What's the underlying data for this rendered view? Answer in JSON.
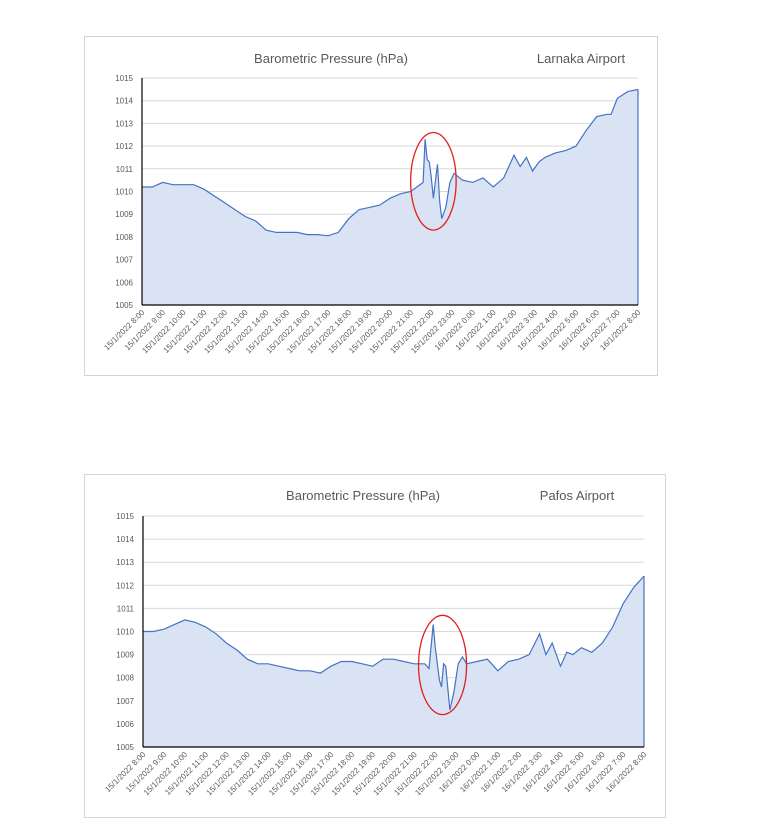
{
  "chart_data": [
    {
      "type": "area",
      "title": "Barometric Pressure (hPa)",
      "subtitle": "Larnaka Airport",
      "xlabel": "",
      "ylabel": "",
      "ylim": [
        1005,
        1015
      ],
      "yticks": [
        "1005",
        "1006",
        "1007",
        "1008",
        "1009",
        "1010",
        "1011",
        "1012",
        "1013",
        "1014",
        "1015"
      ],
      "xticks": [
        "15/1/2022 8:00",
        "15/1/2022 9:00",
        "15/1/2022 10:00",
        "15/1/2022 11:00",
        "15/1/2022 12:00",
        "15/1/2022 13:00",
        "15/1/2022 14:00",
        "15/1/2022 15:00",
        "15/1/2022 16:00",
        "15/1/2022 17:00",
        "15/1/2022 18:00",
        "15/1/2022 19:00",
        "15/1/2022 20:00",
        "15/1/2022 21:00",
        "15/1/2022 22:00",
        "15/1/2022 23:00",
        "16/1/2022 0:00",
        "16/1/2022 1:00",
        "16/1/2022 2:00",
        "16/1/2022 3:00",
        "16/1/2022 4:00",
        "16/1/2022 5:00",
        "16/1/2022 6:00",
        "16/1/2022 7:00",
        "16/1/2022 8:00"
      ],
      "x_hours_from_start": [
        0,
        0.5,
        1,
        1.5,
        2,
        2.5,
        3,
        3.5,
        4,
        4.5,
        5,
        5.5,
        6,
        6.5,
        7,
        7.5,
        8,
        8.5,
        9,
        9.5,
        10,
        10.5,
        11,
        11.5,
        12,
        12.5,
        13,
        13.3,
        13.6,
        13.7,
        13.8,
        13.9,
        14.0,
        14.1,
        14.2,
        14.3,
        14.4,
        14.5,
        14.7,
        14.9,
        15.1,
        15.5,
        16,
        16.5,
        17,
        17.5,
        18,
        18.3,
        18.6,
        18.9,
        19.2,
        19.5,
        20,
        20.5,
        21,
        21.5,
        22,
        22.5,
        22.7,
        23,
        23.5,
        24
      ],
      "values": [
        1010.2,
        1010.2,
        1010.4,
        1010.3,
        1010.3,
        1010.3,
        1010.1,
        1009.8,
        1009.5,
        1009.2,
        1008.9,
        1008.7,
        1008.3,
        1008.2,
        1008.2,
        1008.2,
        1008.1,
        1008.1,
        1008.05,
        1008.2,
        1008.8,
        1009.2,
        1009.3,
        1009.4,
        1009.7,
        1009.9,
        1010.0,
        1010.2,
        1010.4,
        1012.3,
        1011.4,
        1011.3,
        1010.6,
        1009.7,
        1010.5,
        1011.2,
        1009.6,
        1008.8,
        1009.3,
        1010.4,
        1010.8,
        1010.5,
        1010.4,
        1010.6,
        1010.2,
        1010.6,
        1011.6,
        1011.1,
        1011.5,
        1010.9,
        1011.3,
        1011.5,
        1011.7,
        1011.8,
        1012.0,
        1012.7,
        1013.3,
        1013.4,
        1013.4,
        1014.1,
        1014.4,
        1014.5
      ],
      "annotation": {
        "shape": "ellipse",
        "x_range_hours": [
          13.0,
          15.2
        ],
        "y_range": [
          1008.3,
          1012.6
        ],
        "color": "#e02020"
      },
      "line_color": "#4472c4",
      "fill_color": "#dae3f3",
      "grid": true
    },
    {
      "type": "area",
      "title": "Barometric Pressure (hPa)",
      "subtitle": "Pafos Airport",
      "xlabel": "",
      "ylabel": "",
      "ylim": [
        1005,
        1015
      ],
      "yticks": [
        "1005",
        "1006",
        "1007",
        "1008",
        "1009",
        "1010",
        "1011",
        "1012",
        "1013",
        "1014",
        "1015"
      ],
      "xticks": [
        "15/1/2022 8:00",
        "15/1/2022 9:00",
        "15/1/2022 10:00",
        "15/1/2022 11:00",
        "15/1/2022 12:00",
        "15/1/2022 13:00",
        "15/1/2022 14:00",
        "15/1/2022 15:00",
        "15/1/2022 16:00",
        "15/1/2022 17:00",
        "15/1/2022 18:00",
        "15/1/2022 19:00",
        "15/1/2022 20:00",
        "15/1/2022 21:00",
        "15/1/2022 22:00",
        "15/1/2022 23:00",
        "16/1/2022 0:00",
        "16/1/2022 1:00",
        "16/1/2022 2:00",
        "16/1/2022 3:00",
        "16/1/2022 4:00",
        "16/1/2022 5:00",
        "16/1/2022 6:00",
        "16/1/2022 7:00",
        "16/1/2022 8:00"
      ],
      "x_hours_from_start": [
        0,
        0.5,
        1,
        1.5,
        2,
        2.5,
        3,
        3.5,
        4,
        4.5,
        5,
        5.5,
        6,
        6.5,
        7,
        7.5,
        8,
        8.5,
        9,
        9.5,
        10,
        10.5,
        11,
        11.5,
        12,
        12.5,
        13,
        13.5,
        13.7,
        13.9,
        14.0,
        14.2,
        14.3,
        14.4,
        14.5,
        14.7,
        14.9,
        15.1,
        15.3,
        15.5,
        16,
        16.5,
        17,
        17.5,
        18,
        18.5,
        19,
        19.3,
        19.6,
        20,
        20.3,
        20.6,
        21,
        21.5,
        22,
        22.5,
        23,
        23.5,
        24
      ],
      "values": [
        1010.0,
        1010.0,
        1010.1,
        1010.3,
        1010.5,
        1010.4,
        1010.2,
        1009.9,
        1009.5,
        1009.2,
        1008.8,
        1008.6,
        1008.6,
        1008.5,
        1008.4,
        1008.3,
        1008.3,
        1008.2,
        1008.5,
        1008.7,
        1008.7,
        1008.6,
        1008.5,
        1008.8,
        1008.8,
        1008.7,
        1008.6,
        1008.6,
        1008.4,
        1010.3,
        1009.3,
        1007.9,
        1007.6,
        1008.6,
        1008.5,
        1006.6,
        1007.4,
        1008.6,
        1008.9,
        1008.6,
        1008.7,
        1008.8,
        1008.3,
        1008.7,
        1008.8,
        1009.0,
        1009.9,
        1009.0,
        1009.5,
        1008.5,
        1009.1,
        1009.0,
        1009.3,
        1009.1,
        1009.5,
        1010.2,
        1011.2,
        1011.9,
        1012.4
      ],
      "annotation": {
        "shape": "ellipse",
        "x_range_hours": [
          13.2,
          15.5
        ],
        "y_range": [
          1006.4,
          1010.7
        ],
        "color": "#e02020"
      },
      "line_color": "#4472c4",
      "fill_color": "#dae3f3",
      "grid": true
    }
  ]
}
